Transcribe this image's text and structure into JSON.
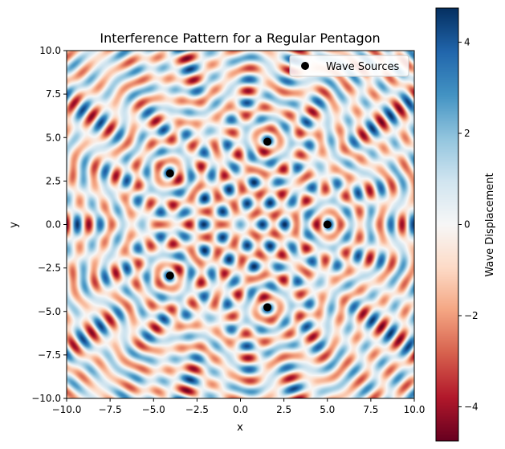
{
  "chart_data": {
    "type": "heatmap",
    "title": "Interference Pattern for a Regular Pentagon",
    "xlabel": "x",
    "ylabel": "y",
    "xlim": [
      -10,
      10
    ],
    "ylim": [
      -10,
      10
    ],
    "xticks": [
      "−10.0",
      "−7.5",
      "−5.0",
      "−2.5",
      "0.0",
      "2.5",
      "5.0",
      "7.5",
      "10.0"
    ],
    "yticks": [
      "10.0",
      "7.5",
      "5.0",
      "2.5",
      "0.0",
      "−2.5",
      "−5.0",
      "−7.5",
      "−10.0"
    ],
    "xtick_values": [
      -10,
      -7.5,
      -5,
      -2.5,
      0,
      2.5,
      5,
      7.5,
      10
    ],
    "ytick_values": [
      10,
      7.5,
      5,
      2.5,
      0,
      -2.5,
      -5,
      -7.5,
      -10
    ],
    "colormap": "RdBu",
    "colorbar": {
      "label": "Wave Displacement",
      "range": [
        -4.75,
        4.75
      ],
      "ticks": [
        "4",
        "2",
        "0",
        "−2",
        "−4"
      ],
      "tick_values": [
        4,
        2,
        0,
        -2,
        -4
      ]
    },
    "legend": {
      "entry": "Wave Sources",
      "placement": "top-right"
    },
    "sources": [
      {
        "x": 5.0,
        "y": 0.0
      },
      {
        "x": 1.55,
        "y": 4.76
      },
      {
        "x": -4.05,
        "y": 2.94
      },
      {
        "x": -4.05,
        "y": -2.94
      },
      {
        "x": 1.55,
        "y": -4.76
      }
    ],
    "marker_color": "#000000"
  }
}
